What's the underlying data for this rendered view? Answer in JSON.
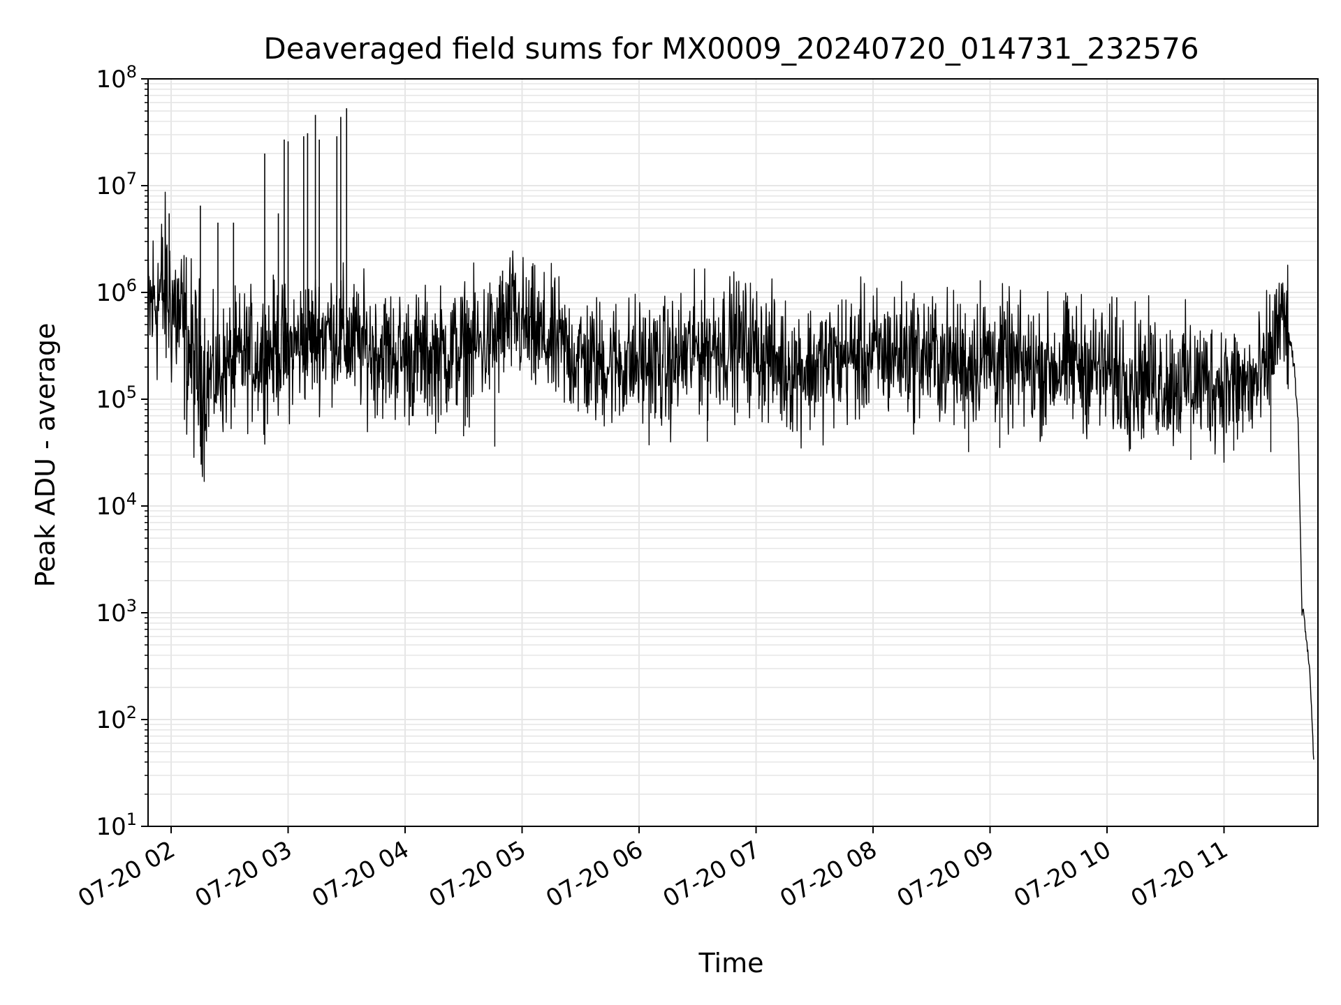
{
  "chart_data": {
    "type": "line",
    "title": "Deaveraged field sums for MX0009_20240720_014731_232576",
    "xlabel": "Time",
    "ylabel": "Peak ADU - average",
    "yscale": "log",
    "ylim": [
      10,
      100000000
    ],
    "xlim": [
      "2024-07-20T01:47:31",
      "2024-07-20T11:47:00"
    ],
    "x_ticks": [
      "07-20 02",
      "07-20 03",
      "07-20 04",
      "07-20 05",
      "07-20 06",
      "07-20 07",
      "07-20 08",
      "07-20 09",
      "07-20 10",
      "07-20 11"
    ],
    "x_tick_hours": [
      2,
      3,
      4,
      5,
      6,
      7,
      8,
      9,
      10,
      11
    ],
    "y_ticks": [
      {
        "value": 10,
        "base": "10",
        "exp": "1"
      },
      {
        "value": 100,
        "base": "10",
        "exp": "2"
      },
      {
        "value": 1000,
        "base": "10",
        "exp": "3"
      },
      {
        "value": 10000,
        "base": "10",
        "exp": "4"
      },
      {
        "value": 100000,
        "base": "10",
        "exp": "5"
      },
      {
        "value": 1000000,
        "base": "10",
        "exp": "6"
      },
      {
        "value": 10000000,
        "base": "10",
        "exp": "7"
      },
      {
        "value": 100000000,
        "base": "10",
        "exp": "8"
      }
    ],
    "grid": true,
    "line_color": "#000000",
    "grid_color": "#e6e6e6",
    "series": [
      {
        "x": [
          "2024-07-20T01:48",
          "2024-07-20T01:52",
          "2024-07-20T01:57",
          "2024-07-20T02:02",
          "2024-07-20T02:07",
          "2024-07-20T02:12",
          "2024-07-20T02:18",
          "2024-07-20T02:24",
          "2024-07-20T02:30",
          "2024-07-20T02:37",
          "2024-07-20T02:45",
          "2024-07-20T02:52",
          "2024-07-20T03:00",
          "2024-07-20T03:08",
          "2024-07-20T03:15",
          "2024-07-20T03:23",
          "2024-07-20T03:30",
          "2024-07-20T03:40",
          "2024-07-20T03:50",
          "2024-07-20T04:00",
          "2024-07-20T04:15",
          "2024-07-20T04:30",
          "2024-07-20T04:45",
          "2024-07-20T04:55",
          "2024-07-20T05:05",
          "2024-07-20T05:20",
          "2024-07-20T05:35",
          "2024-07-20T05:50",
          "2024-07-20T06:00",
          "2024-07-20T06:15",
          "2024-07-20T06:30",
          "2024-07-20T06:45",
          "2024-07-20T07:00",
          "2024-07-20T07:15",
          "2024-07-20T07:30",
          "2024-07-20T07:45",
          "2024-07-20T08:00",
          "2024-07-20T08:15",
          "2024-07-20T08:30",
          "2024-07-20T08:45",
          "2024-07-20T09:00",
          "2024-07-20T09:15",
          "2024-07-20T09:30",
          "2024-07-20T09:45",
          "2024-07-20T10:00",
          "2024-07-20T10:15",
          "2024-07-20T10:30",
          "2024-07-20T10:45",
          "2024-07-20T11:00",
          "2024-07-20T11:10",
          "2024-07-20T11:20",
          "2024-07-20T11:28",
          "2024-07-20T11:33",
          "2024-07-20T11:36",
          "2024-07-20T11:38",
          "2024-07-20T11:40",
          "2024-07-20T11:41",
          "2024-07-20T11:42",
          "2024-07-20T11:44",
          "2024-07-20T11:46"
        ],
        "y": [
          600000,
          900000,
          1000000,
          700000,
          400000,
          200000,
          150000,
          180000,
          200000,
          250000,
          250000,
          300000,
          280000,
          350000,
          400000,
          450000,
          350000,
          300000,
          280000,
          250000,
          250000,
          300000,
          350000,
          600000,
          400000,
          300000,
          220000,
          220000,
          220000,
          200000,
          300000,
          350000,
          300000,
          200000,
          200000,
          250000,
          250000,
          280000,
          250000,
          220000,
          250000,
          200000,
          200000,
          220000,
          180000,
          170000,
          150000,
          150000,
          140000,
          130000,
          150000,
          500000,
          450000,
          200000,
          60000,
          1000,
          1000,
          600,
          300,
          40
        ]
      }
    ],
    "spikes": [
      {
        "x": "2024-07-20T01:59",
        "y": 5500000
      },
      {
        "x": "2024-07-20T02:15",
        "y": 6500000
      },
      {
        "x": "2024-07-20T02:24",
        "y": 4500000
      },
      {
        "x": "2024-07-20T02:32",
        "y": 4500000
      },
      {
        "x": "2024-07-20T02:48",
        "y": 20000000
      },
      {
        "x": "2024-07-20T02:55",
        "y": 5500000
      },
      {
        "x": "2024-07-20T02:58",
        "y": 27000000
      },
      {
        "x": "2024-07-20T03:00",
        "y": 26000000
      },
      {
        "x": "2024-07-20T03:08",
        "y": 29000000
      },
      {
        "x": "2024-07-20T03:10",
        "y": 31000000
      },
      {
        "x": "2024-07-20T03:14",
        "y": 46000000
      },
      {
        "x": "2024-07-20T03:16",
        "y": 27000000
      },
      {
        "x": "2024-07-20T03:25",
        "y": 29000000
      },
      {
        "x": "2024-07-20T03:27",
        "y": 44000000
      },
      {
        "x": "2024-07-20T03:30",
        "y": 53000000
      },
      {
        "x": "2024-07-20T04:50",
        "y": 1600000
      },
      {
        "x": "2024-07-20T08:55",
        "y": 1300000
      },
      {
        "x": "2024-07-20T10:05",
        "y": 900000
      }
    ],
    "dips": [
      {
        "x": "2024-07-20T02:15",
        "y": 36000
      },
      {
        "x": "2024-07-20T04:30",
        "y": 45000
      },
      {
        "x": "2024-07-20T04:46",
        "y": 36000
      },
      {
        "x": "2024-07-20T06:35",
        "y": 40000
      },
      {
        "x": "2024-07-20T08:49",
        "y": 32000
      },
      {
        "x": "2024-07-20T09:05",
        "y": 35000
      },
      {
        "x": "2024-07-20T10:12",
        "y": 34000
      },
      {
        "x": "2024-07-20T10:43",
        "y": 27000
      },
      {
        "x": "2024-07-20T11:05",
        "y": 33000
      },
      {
        "x": "2024-07-20T11:24",
        "y": 32000
      }
    ]
  }
}
